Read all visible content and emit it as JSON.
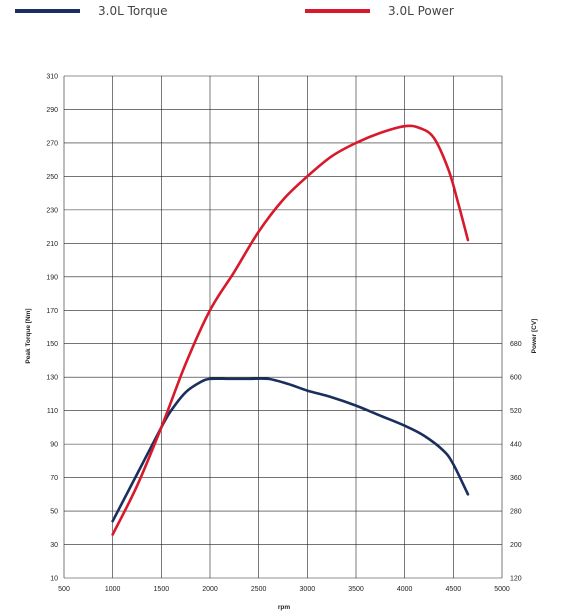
{
  "chart_data": {
    "type": "line",
    "xlabel": "rpm",
    "ylabel_left": "Peak Torque [Nm]",
    "ylabel_right": "Power [CV]",
    "x_ticks": [
      500,
      1000,
      1500,
      2000,
      2500,
      3000,
      3500,
      4000,
      4500,
      5000
    ],
    "xlim": [
      500,
      5000
    ],
    "y_left_ticks": [
      10,
      30,
      50,
      70,
      90,
      110,
      130,
      150,
      170,
      190,
      210,
      230,
      250,
      270,
      290,
      310
    ],
    "ylim_left": [
      10,
      310
    ],
    "y_right_ticks": [
      120,
      200,
      280,
      360,
      440,
      520,
      600,
      680
    ],
    "grid": true,
    "legend_position": "top",
    "series": [
      {
        "name": "3.0L Torque",
        "color": "#1b2f5e",
        "x": [
          1000,
          1250,
          1500,
          1600,
          1750,
          1900,
          2000,
          2200,
          2400,
          2600,
          2800,
          3000,
          3250,
          3500,
          3750,
          4000,
          4200,
          4400,
          4500,
          4650
        ],
        "y": [
          44,
          72,
          100,
          110,
          121,
          127,
          129,
          129,
          129,
          129,
          126,
          122,
          118,
          113,
          107,
          101,
          95,
          86,
          78,
          60
        ]
      },
      {
        "name": "3.0L Power",
        "color": "#d7192b",
        "x": [
          1000,
          1250,
          1500,
          1750,
          2000,
          2250,
          2500,
          2750,
          3000,
          3250,
          3500,
          3750,
          4000,
          4150,
          4300,
          4450,
          4550,
          4650
        ],
        "y": [
          36,
          65,
          100,
          138,
          170,
          193,
          217,
          236,
          250,
          262,
          270,
          276,
          280,
          279,
          273,
          254,
          234,
          212
        ]
      }
    ]
  }
}
